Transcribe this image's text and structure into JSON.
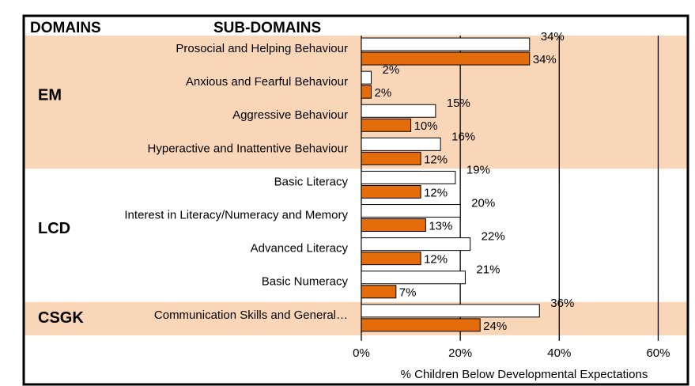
{
  "chart_data": {
    "type": "bar",
    "orientation": "horizontal",
    "headers": [
      "DOMAINS",
      "SUB-DOMAINS"
    ],
    "categories": [
      "Prosocial and Helping Behaviour",
      "Anxious and Fearful Behaviour",
      "Aggressive Behaviour",
      "Hyperactive and Inattentive Behaviour",
      "Basic Literacy",
      "Interest in Literacy/Numeracy and Memory",
      "Advanced Literacy",
      "Basic Numeracy",
      "Communication Skills and General…"
    ],
    "groups": [
      {
        "label": "EM",
        "size": 4,
        "color": "#fad6b9"
      },
      {
        "label": "LCD",
        "size": 4,
        "color": "#ffffff"
      },
      {
        "label": "CSGK",
        "size": 1,
        "color": "#fad6b9"
      }
    ],
    "series": [
      {
        "color": "#ffffff",
        "values": [
          34,
          2,
          15,
          16,
          19,
          20,
          22,
          21,
          36
        ],
        "value_labels": [
          "34%",
          "2%",
          "15%",
          "16%",
          "19%",
          "20%",
          "22%",
          "21%",
          "36%"
        ]
      },
      {
        "color": "#e46c0a",
        "values": [
          34,
          2,
          10,
          12,
          12,
          13,
          12,
          7,
          24
        ],
        "value_labels": [
          "34%",
          "2%",
          "10%",
          "12%",
          "12%",
          "13%",
          "12%",
          "7%",
          "24%"
        ]
      }
    ],
    "xlabel": "% Children Below Developmental Expectations",
    "xlim": [
      0,
      66
    ],
    "xticks": [
      {
        "value": 0,
        "label": "0%"
      },
      {
        "value": 20,
        "label": "20%"
      },
      {
        "value": 40,
        "label": "40%"
      },
      {
        "value": 60,
        "label": "60%"
      }
    ],
    "grid": true
  }
}
